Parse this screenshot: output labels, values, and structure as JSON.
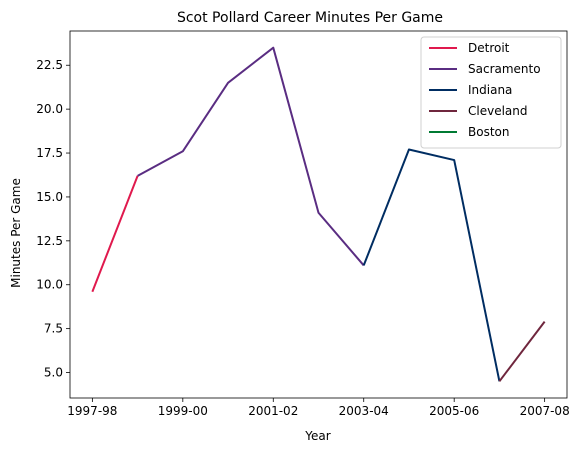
{
  "chart_data": {
    "type": "line",
    "title": "Scot Pollard Career Minutes Per Game",
    "xlabel": "Year",
    "ylabel": "Minutes Per Game",
    "x_categories": [
      "1997-98",
      "1998-99",
      "1999-00",
      "2000-01",
      "2001-02",
      "2002-03",
      "2003-04",
      "2004-05",
      "2005-06",
      "2006-07",
      "2007-08"
    ],
    "x_tick_labels": [
      "1997-98",
      "1999-00",
      "2001-02",
      "2003-04",
      "2005-06",
      "2007-08"
    ],
    "y_ticks": [
      5.0,
      7.5,
      10.0,
      12.5,
      15.0,
      17.5,
      20.0,
      22.5
    ],
    "y_tick_labels": [
      "5.0",
      "7.5",
      "10.0",
      "12.5",
      "15.0",
      "17.5",
      "20.0",
      "22.5"
    ],
    "ylim": [
      3.55,
      24.45
    ],
    "grid": false,
    "legend_position": "top-right",
    "series": [
      {
        "name": "Detroit",
        "color": "#e0194d",
        "x": [
          "1997-98",
          "1998-99"
        ],
        "y": [
          9.6,
          16.2
        ]
      },
      {
        "name": "Sacramento",
        "color": "#5a2d82",
        "x": [
          "1998-99",
          "1999-00",
          "2000-01",
          "2001-02",
          "2002-03",
          "2003-04"
        ],
        "y": [
          16.2,
          17.6,
          21.5,
          23.5,
          14.1,
          11.1
        ]
      },
      {
        "name": "Indiana",
        "color": "#002d62",
        "x": [
          "2003-04",
          "2004-05",
          "2005-06",
          "2006-07"
        ],
        "y": [
          11.1,
          17.7,
          17.1,
          4.5
        ]
      },
      {
        "name": "Cleveland",
        "color": "#6f263d",
        "x": [
          "2006-07",
          "2007-08"
        ],
        "y": [
          4.5,
          7.9
        ]
      },
      {
        "name": "Boston",
        "color": "#007a33",
        "x": [],
        "y": []
      }
    ]
  }
}
